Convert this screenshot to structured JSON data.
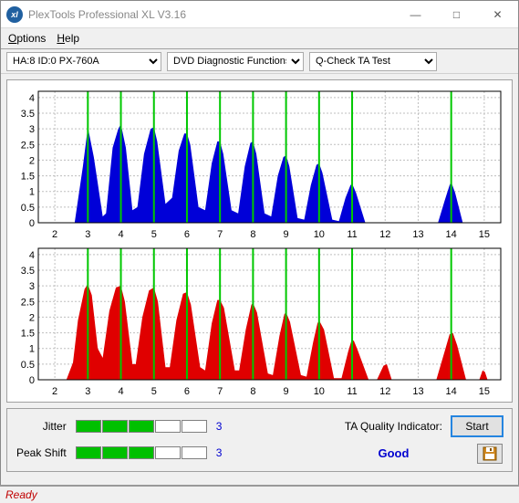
{
  "window": {
    "title": "PlexTools Professional XL V3.16",
    "frame_color": "#f0f0f0",
    "titlebar_bg": "#ffffff",
    "icon_bg": "#2060a0",
    "icon_text": "xl"
  },
  "menu": {
    "items": [
      "Options",
      "Help"
    ]
  },
  "toolbar": {
    "device": "HA:8 ID:0   PX-760A",
    "device_width": 170,
    "category": "DVD Diagnostic Functions",
    "category_width": 150,
    "test": "Q-Check TA Test",
    "test_width": 140
  },
  "chart_top": {
    "type": "area-histogram",
    "fill_color": "#0000d8",
    "bg_color": "#ffffff",
    "grid_color": "#bfbfbf",
    "marker_color": "#00c800",
    "axis_fontsize": 11,
    "x_ticks": [
      2,
      3,
      4,
      5,
      6,
      7,
      8,
      9,
      10,
      11,
      12,
      13,
      14,
      15
    ],
    "y_ticks": [
      0,
      0.5,
      1,
      1.5,
      2,
      2.5,
      3,
      3.5,
      4
    ],
    "xlim": [
      1.5,
      15.5
    ],
    "ylim": [
      0,
      4.2
    ],
    "markers_x": [
      3,
      4,
      5,
      6,
      7,
      8,
      9,
      10,
      11,
      14
    ],
    "series": [
      [
        2.6,
        0.0
      ],
      [
        2.85,
        1.8
      ],
      [
        3.0,
        3.05
      ],
      [
        3.18,
        2.1
      ],
      [
        3.28,
        1.4
      ],
      [
        3.45,
        0.2
      ],
      [
        3.55,
        0.3
      ],
      [
        3.75,
        2.4
      ],
      [
        3.92,
        3.0
      ],
      [
        4.0,
        3.15
      ],
      [
        4.15,
        2.4
      ],
      [
        4.35,
        0.4
      ],
      [
        4.5,
        0.5
      ],
      [
        4.7,
        2.2
      ],
      [
        4.9,
        3.0
      ],
      [
        5.0,
        3.05
      ],
      [
        5.1,
        2.6
      ],
      [
        5.35,
        0.6
      ],
      [
        5.55,
        0.8
      ],
      [
        5.75,
        2.3
      ],
      [
        5.92,
        2.85
      ],
      [
        6.0,
        2.85
      ],
      [
        6.1,
        2.5
      ],
      [
        6.35,
        0.5
      ],
      [
        6.55,
        0.4
      ],
      [
        6.75,
        1.9
      ],
      [
        6.92,
        2.6
      ],
      [
        7.0,
        2.6
      ],
      [
        7.1,
        2.2
      ],
      [
        7.35,
        0.4
      ],
      [
        7.55,
        0.3
      ],
      [
        7.75,
        1.8
      ],
      [
        7.92,
        2.55
      ],
      [
        8.0,
        2.6
      ],
      [
        8.1,
        2.2
      ],
      [
        8.35,
        0.3
      ],
      [
        8.55,
        0.2
      ],
      [
        8.75,
        1.5
      ],
      [
        8.92,
        2.1
      ],
      [
        9.0,
        2.15
      ],
      [
        9.1,
        1.8
      ],
      [
        9.35,
        0.15
      ],
      [
        9.55,
        0.1
      ],
      [
        9.75,
        1.2
      ],
      [
        9.92,
        1.85
      ],
      [
        10.0,
        1.9
      ],
      [
        10.1,
        1.6
      ],
      [
        10.4,
        0.1
      ],
      [
        10.6,
        0.05
      ],
      [
        10.8,
        0.8
      ],
      [
        10.95,
        1.2
      ],
      [
        11.0,
        1.25
      ],
      [
        11.12,
        0.95
      ],
      [
        11.4,
        0.0
      ],
      [
        13.6,
        0.0
      ],
      [
        13.8,
        0.7
      ],
      [
        13.95,
        1.2
      ],
      [
        14.0,
        1.3
      ],
      [
        14.12,
        0.95
      ],
      [
        14.35,
        0.0
      ]
    ]
  },
  "chart_bottom": {
    "type": "area-histogram",
    "fill_color": "#e00000",
    "bg_color": "#ffffff",
    "grid_color": "#bfbfbf",
    "marker_color": "#00c800",
    "axis_fontsize": 11,
    "x_ticks": [
      2,
      3,
      4,
      5,
      6,
      7,
      8,
      9,
      10,
      11,
      12,
      13,
      14,
      15
    ],
    "y_ticks": [
      0,
      0.5,
      1,
      1.5,
      2,
      2.5,
      3,
      3.5,
      4
    ],
    "xlim": [
      1.5,
      15.5
    ],
    "ylim": [
      0,
      4.2
    ],
    "markers_x": [
      3,
      4,
      5,
      6,
      7,
      8,
      9,
      10,
      11,
      14
    ],
    "series": [
      [
        2.35,
        0.0
      ],
      [
        2.55,
        0.55
      ],
      [
        2.7,
        1.9
      ],
      [
        2.9,
        2.9
      ],
      [
        3.0,
        3.05
      ],
      [
        3.12,
        2.7
      ],
      [
        3.3,
        1.0
      ],
      [
        3.45,
        0.7
      ],
      [
        3.65,
        2.2
      ],
      [
        3.85,
        2.95
      ],
      [
        4.0,
        3.0
      ],
      [
        4.12,
        2.5
      ],
      [
        4.35,
        0.5
      ],
      [
        4.45,
        0.5
      ],
      [
        4.65,
        2.0
      ],
      [
        4.85,
        2.85
      ],
      [
        5.0,
        2.95
      ],
      [
        5.12,
        2.5
      ],
      [
        5.35,
        0.4
      ],
      [
        5.48,
        0.4
      ],
      [
        5.68,
        1.9
      ],
      [
        5.88,
        2.75
      ],
      [
        6.0,
        2.8
      ],
      [
        6.12,
        2.4
      ],
      [
        6.4,
        0.4
      ],
      [
        6.55,
        0.3
      ],
      [
        6.75,
        1.8
      ],
      [
        6.92,
        2.55
      ],
      [
        7.0,
        2.55
      ],
      [
        7.12,
        2.3
      ],
      [
        7.45,
        0.3
      ],
      [
        7.58,
        0.3
      ],
      [
        7.78,
        1.6
      ],
      [
        7.95,
        2.4
      ],
      [
        8.0,
        2.45
      ],
      [
        8.12,
        2.15
      ],
      [
        8.45,
        0.2
      ],
      [
        8.6,
        0.15
      ],
      [
        8.8,
        1.4
      ],
      [
        8.95,
        2.1
      ],
      [
        9.0,
        2.15
      ],
      [
        9.12,
        1.85
      ],
      [
        9.45,
        0.15
      ],
      [
        9.62,
        0.1
      ],
      [
        9.82,
        1.2
      ],
      [
        9.95,
        1.8
      ],
      [
        10.0,
        1.9
      ],
      [
        10.15,
        1.6
      ],
      [
        10.45,
        0.05
      ],
      [
        10.68,
        0.05
      ],
      [
        10.88,
        0.9
      ],
      [
        10.98,
        1.25
      ],
      [
        11.05,
        1.25
      ],
      [
        11.15,
        1.0
      ],
      [
        11.5,
        0.0
      ],
      [
        11.75,
        0.0
      ],
      [
        11.95,
        0.45
      ],
      [
        12.05,
        0.5
      ],
      [
        12.2,
        0.0
      ],
      [
        13.55,
        0.0
      ],
      [
        13.8,
        0.9
      ],
      [
        13.95,
        1.45
      ],
      [
        14.05,
        1.5
      ],
      [
        14.18,
        1.1
      ],
      [
        14.45,
        0.0
      ],
      [
        14.85,
        0.0
      ],
      [
        14.95,
        0.3
      ],
      [
        15.02,
        0.25
      ],
      [
        15.1,
        0.0
      ]
    ]
  },
  "metrics": {
    "jitter": {
      "label": "Jitter",
      "value": 3,
      "max": 5,
      "color_filled": "#00c000"
    },
    "peak_shift": {
      "label": "Peak Shift",
      "value": 3,
      "max": 5,
      "color_filled": "#00c000"
    },
    "quality": {
      "label": "TA Quality Indicator:",
      "value": "Good",
      "value_color": "#0000d0"
    },
    "value_color": "#0000d0"
  },
  "buttons": {
    "start": "Start"
  },
  "status": {
    "text": "Ready",
    "color": "#c00000"
  }
}
